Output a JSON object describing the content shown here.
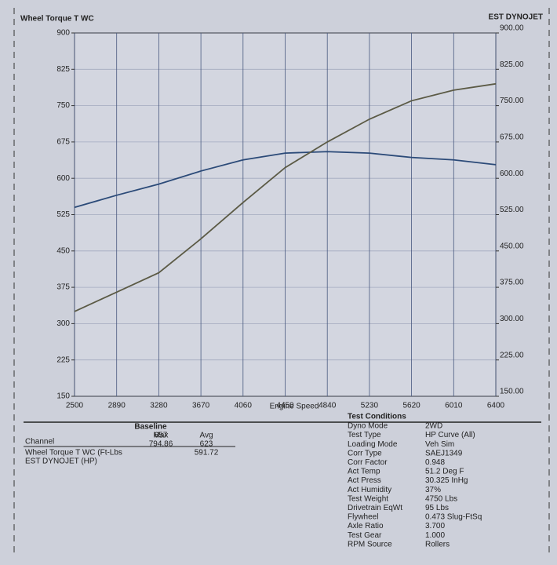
{
  "chart_data": {
    "type": "line",
    "ylabel": "Wheel Torque T WC",
    "y2label": "EST DYNOJET",
    "xlabel": "Engine Speed",
    "x": [
      2500,
      2890,
      3280,
      3670,
      4060,
      4450,
      4840,
      5230,
      5620,
      6010,
      6400
    ],
    "xlim": [
      2500,
      6400
    ],
    "xticks": [
      2500,
      2890,
      3280,
      3670,
      4060,
      4450,
      4840,
      5230,
      5620,
      6010,
      6400
    ],
    "ylim": [
      150,
      900
    ],
    "yticks": [
      150,
      225,
      300,
      375,
      450,
      525,
      600,
      675,
      750,
      825,
      900
    ],
    "y2lim": [
      150,
      900
    ],
    "y2ticks": [
      {
        "value": 150,
        "label": "150.00"
      },
      {
        "value": 225,
        "label": "225.00"
      },
      {
        "value": 300,
        "label": "300.00"
      },
      {
        "value": 375,
        "label": "375.00"
      },
      {
        "value": 450,
        "label": "450.00"
      },
      {
        "value": 525,
        "label": "525.00"
      },
      {
        "value": 600,
        "label": "600.00"
      },
      {
        "value": 675,
        "label": "675.00"
      },
      {
        "value": 750,
        "label": "750.00"
      },
      {
        "value": 825,
        "label": "825.00"
      },
      {
        "value": 900,
        "label": "900.00"
      }
    ],
    "grid": true,
    "series": [
      {
        "name": "Wheel Torque T WC (Ft-Lbs",
        "color": "#2b4a78",
        "values": [
          540,
          565,
          588,
          615,
          638,
          652,
          655,
          652,
          643,
          638,
          628
        ]
      },
      {
        "name": "EST DYNOJET (HP)",
        "color": "#5b5a45",
        "axis": "y2",
        "values": [
          325,
          365,
          405,
          475,
          550,
          622,
          675,
          722,
          760,
          782,
          795
        ]
      }
    ]
  },
  "summary": {
    "title": "Baseline",
    "columns": [
      "Channel",
      "Max",
      "Avg"
    ],
    "rows": [
      {
        "max": 657,
        "avg": 623
      },
      {
        "max": 794.86,
        "avg": 591.72
      }
    ]
  },
  "test_conditions": {
    "title": "Test Conditions",
    "items": [
      [
        "Dyno Mode",
        "2WD"
      ],
      [
        "Test Type",
        "HP Curve (All)"
      ],
      [
        "Loading Mode",
        "Veh Sim"
      ],
      [
        "Corr Type",
        "SAEJ1349"
      ],
      [
        "Corr Factor",
        "0.948"
      ],
      [
        "Act Temp",
        "51.2 Deg F"
      ],
      [
        "Act Press",
        "30.325 InHg"
      ],
      [
        "Act Humidity",
        "37%"
      ],
      [
        "Test Weight",
        "4750 Lbs"
      ],
      [
        "Drivetrain EqWt",
        "95 Lbs"
      ],
      [
        "Flywheel",
        "0.473 Slug-FtSq"
      ],
      [
        "Axle Ratio",
        "3.700"
      ],
      [
        "Test Gear",
        "1.000"
      ],
      [
        "RPM Source",
        "Rollers"
      ]
    ]
  }
}
